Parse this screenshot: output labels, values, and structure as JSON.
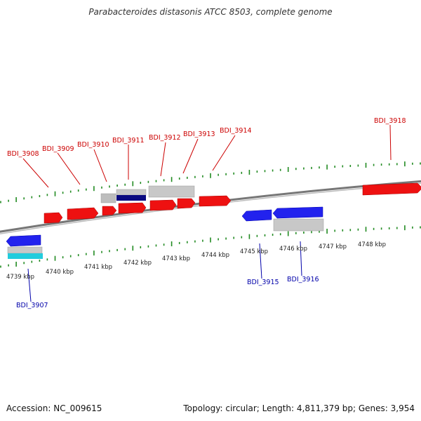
{
  "title": "Parabacteroides distasonis ATCC 8503, complete genome",
  "footer": {
    "accession": "Accession: NC_009615",
    "summary": "Topology: circular; Length: 4,811,379 bp; Genes: 3,954"
  },
  "colors": {
    "forward_gene": "#ee1111",
    "reverse_gene": "#2222ee",
    "forward_label": "#cc0000",
    "reverse_label": "#0000aa",
    "backbone": "#888888",
    "tick": "#228b22",
    "feature_gray": "#bbbbbb",
    "feature_navy": "#000080",
    "feature_cyan": "#22ccdd"
  },
  "kbp_labels": [
    "4739 kbp",
    "4740 kbp",
    "4741 kbp",
    "4742 kbp",
    "4743 kbp",
    "4744 kbp",
    "4745 kbp",
    "4746 kbp",
    "4747 kbp",
    "4748 kbp"
  ],
  "forward_gene_labels": [
    "BDI_3908",
    "BDI_3909",
    "BDI_3910",
    "BDI_3911",
    "BDI_3912",
    "BDI_3913",
    "BDI_3914",
    "BDI_3918"
  ],
  "reverse_gene_labels": [
    "BDI_3907",
    "BDI_3915",
    "BDI_3916"
  ]
}
